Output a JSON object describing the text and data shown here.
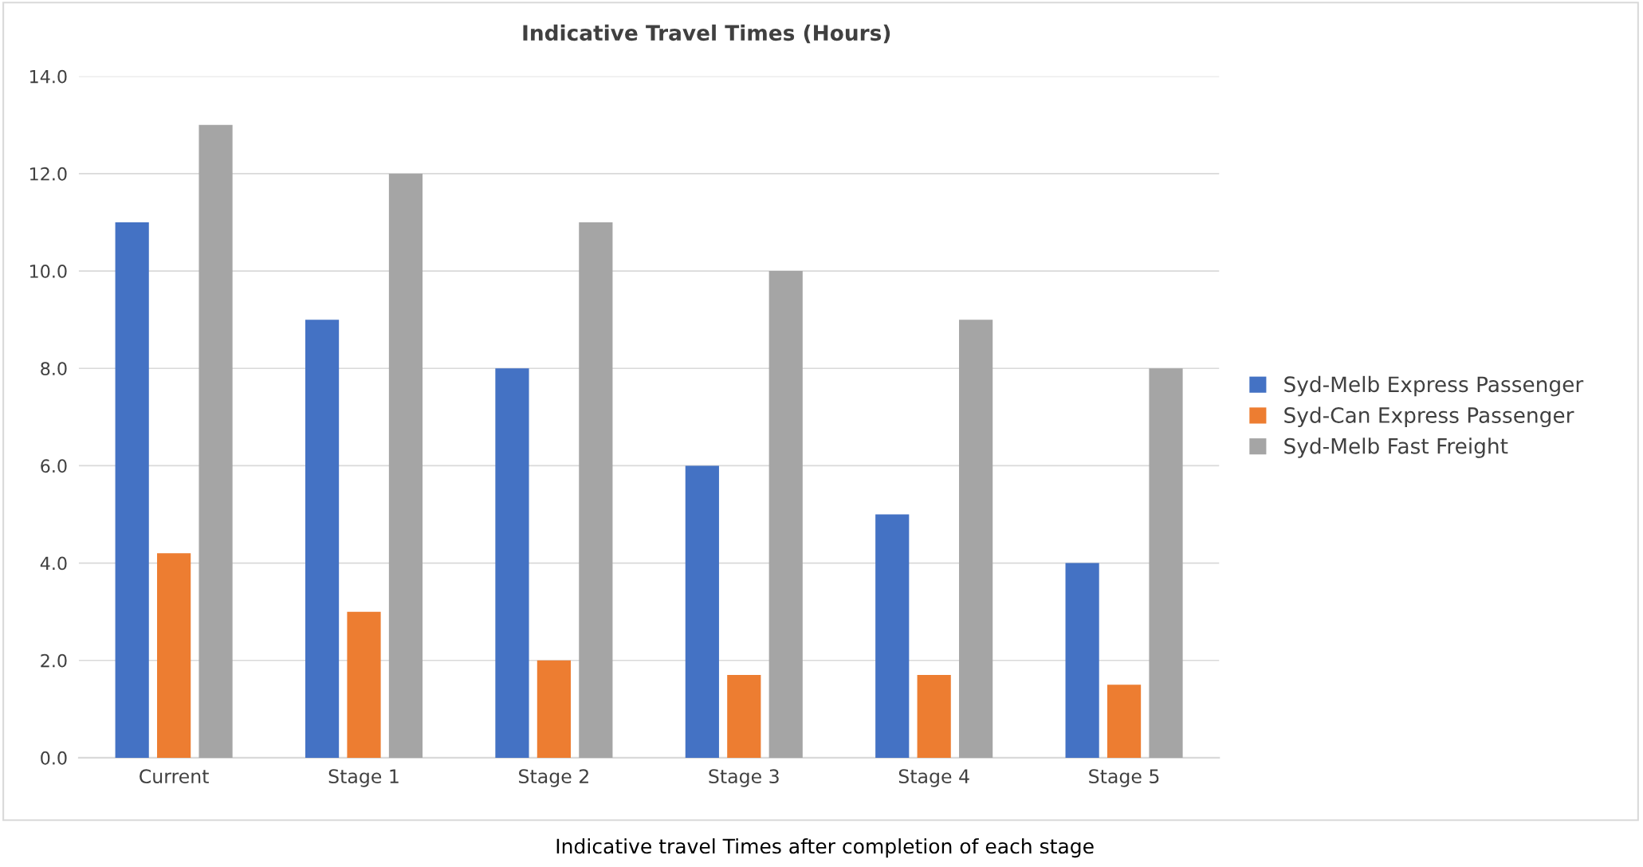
{
  "chart_data": {
    "type": "bar",
    "title": "Indicative Travel Times (Hours)",
    "categories": [
      "Current",
      "Stage 1",
      "Stage 2",
      "Stage 3",
      "Stage 4",
      "Stage 5"
    ],
    "series": [
      {
        "name": "Syd-Melb Express Passenger",
        "color": "#4472c4",
        "values": [
          11,
          9,
          8,
          6,
          5,
          4
        ]
      },
      {
        "name": "Syd-Can Express Passenger",
        "color": "#ed7d31",
        "values": [
          4.2,
          3,
          2,
          1.7,
          1.7,
          1.5
        ]
      },
      {
        "name": "Syd-Melb Fast Freight",
        "color": "#a5a5a5",
        "values": [
          13,
          12,
          11,
          10,
          9,
          8
        ]
      }
    ],
    "ylim": [
      0,
      14
    ],
    "yticks": [
      {
        "value": 0,
        "label": "0.0"
      },
      {
        "value": 2,
        "label": "2.0"
      },
      {
        "value": 4,
        "label": "4.0"
      },
      {
        "value": 6,
        "label": "6.0"
      },
      {
        "value": 8,
        "label": "8.0"
      },
      {
        "value": 10,
        "label": "10.0"
      },
      {
        "value": 12,
        "label": "12.0"
      },
      {
        "value": 14,
        "label": "14.0"
      }
    ],
    "grid": "y",
    "legend": "right",
    "annotations": [
      "Indicative travel Times after completion of each stage"
    ]
  }
}
